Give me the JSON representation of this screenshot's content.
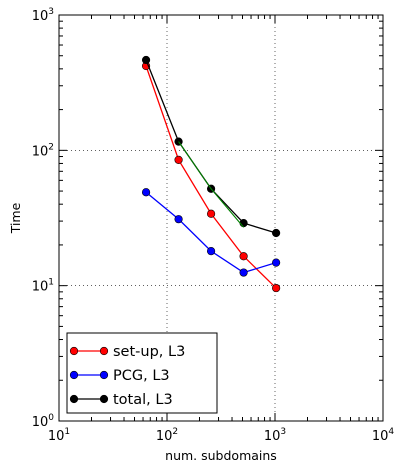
{
  "chart_data": {
    "type": "line",
    "title": "",
    "xlabel": "num. subdomains",
    "ylabel": "Time",
    "xscale": "log",
    "yscale": "log",
    "xlim": [
      10,
      10000
    ],
    "ylim": [
      1,
      1000
    ],
    "grid": true,
    "legend_position": "bottom-left",
    "x_tick_labels": [
      {
        "base": "10",
        "exp": "1"
      },
      {
        "base": "10",
        "exp": "2"
      },
      {
        "base": "10",
        "exp": "3"
      },
      {
        "base": "10",
        "exp": "4"
      }
    ],
    "y_tick_labels": [
      {
        "base": "10",
        "exp": "0"
      },
      {
        "base": "10",
        "exp": "1"
      },
      {
        "base": "10",
        "exp": "2"
      },
      {
        "base": "10",
        "exp": "3"
      }
    ],
    "series": [
      {
        "name": "set-up, L3",
        "color": "#ff0000",
        "x": [
          64,
          128,
          256,
          512,
          1024
        ],
        "y": [
          420,
          85,
          34,
          16.5,
          9.6
        ]
      },
      {
        "name": "PCG, L3",
        "color": "#0000ff",
        "x": [
          64,
          128,
          256,
          512,
          1024
        ],
        "y": [
          49,
          31,
          18,
          12.5,
          14.8
        ]
      },
      {
        "name": "total, L3",
        "color": "#000000",
        "x": [
          64,
          128,
          256,
          512,
          1024
        ],
        "y": [
          465,
          116,
          52,
          29,
          24.5
        ]
      }
    ],
    "unlabeled_line": {
      "color": "#008000",
      "x": [
        128,
        256,
        512
      ],
      "y": [
        116,
        52,
        27
      ]
    }
  }
}
